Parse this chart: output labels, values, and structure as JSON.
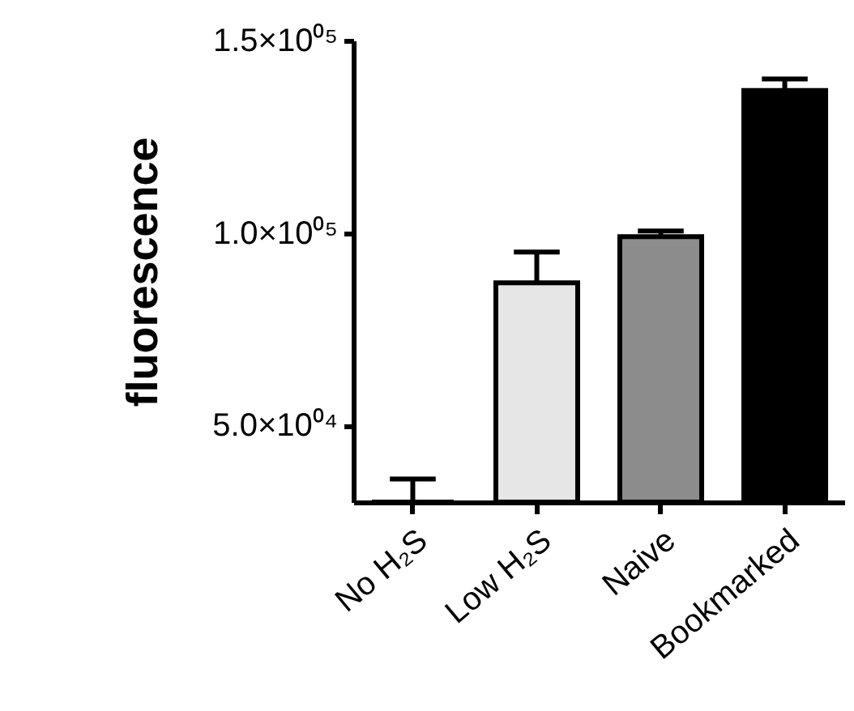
{
  "chart_data": {
    "type": "bar",
    "ylabel": "fluorescence",
    "categories": [
      "No H₂S",
      "Low H₂S",
      "Naive",
      "Bookmarked"
    ],
    "values": [
      30000,
      87000,
      99000,
      137000
    ],
    "colors": [
      "#ffffff",
      "#e6e6e6",
      "#8c8c8c",
      "#000000"
    ],
    "errors": [
      [
        30000,
        36000
      ],
      8000,
      1500,
      3000
    ],
    "ylim": [
      30000,
      150000
    ],
    "yticks": [
      {
        "value": 50000,
        "label": "5.0×10⁰⁴"
      },
      {
        "value": 100000,
        "label": "1.0×10⁰⁵"
      },
      {
        "value": 150000,
        "label": "1.5×10⁰⁵"
      }
    ]
  }
}
